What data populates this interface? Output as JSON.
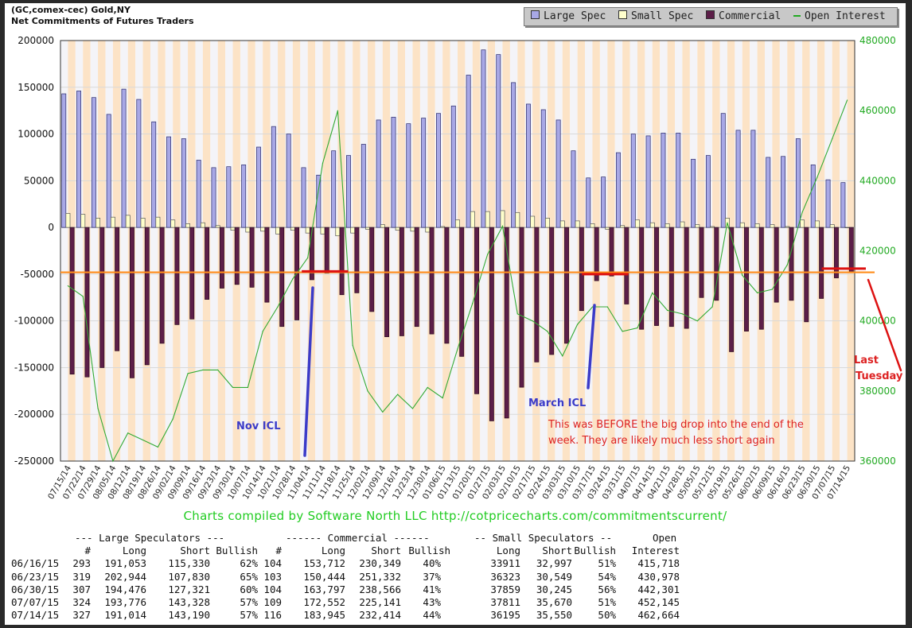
{
  "header": {
    "symbol": "(GC,comex-cec) Gold,NY",
    "subtitle": "Net Commitments of Futures Traders"
  },
  "legend": [
    {
      "label": "Large Spec",
      "color": "#a8a8e6",
      "kind": "bar"
    },
    {
      "label": "Small Spec",
      "color": "#ffffcc",
      "kind": "bar"
    },
    {
      "label": "Commercial",
      "color": "#5c1e48",
      "kind": "bar"
    },
    {
      "label": "Open Interest",
      "color": "#22aa22",
      "kind": "line"
    }
  ],
  "chart_data": {
    "type": "bar",
    "left_axis": {
      "min": -250000,
      "max": 200000,
      "ticks": [
        "200000",
        "150000",
        "100000",
        "50000",
        "0",
        "-50000",
        "-100000",
        "-150000",
        "-200000",
        "-250000"
      ]
    },
    "right_axis": {
      "min": 360000,
      "max": 480000,
      "ticks": [
        "480000",
        "460000",
        "440000",
        "420000",
        "400000",
        "380000",
        "360000"
      ]
    },
    "categories": [
      "07/15/14",
      "07/22/14",
      "07/29/14",
      "08/05/14",
      "08/12/14",
      "08/19/14",
      "08/26/14",
      "09/02/14",
      "09/09/14",
      "09/16/14",
      "09/23/14",
      "09/30/14",
      "10/07/14",
      "10/14/14",
      "10/21/14",
      "10/28/14",
      "11/04/14",
      "11/11/14",
      "11/18/14",
      "11/25/14",
      "12/02/14",
      "12/09/14",
      "12/16/14",
      "12/23/14",
      "12/30/14",
      "01/06/15",
      "01/13/15",
      "01/20/15",
      "01/27/15",
      "02/03/15",
      "02/10/15",
      "02/17/15",
      "02/24/15",
      "03/03/15",
      "03/10/15",
      "03/17/15",
      "03/24/15",
      "03/31/15",
      "04/07/15",
      "04/14/15",
      "04/21/15",
      "04/28/15",
      "05/05/15",
      "05/12/15",
      "05/19/15",
      "05/26/15",
      "06/02/15",
      "06/09/15",
      "06/16/15",
      "06/23/15",
      "06/30/15",
      "07/07/15",
      "07/14/15"
    ],
    "x_tick_labels": [
      "07/15/14",
      "07/22/14",
      "07/29/14",
      "08/05/14",
      "08/12/14",
      "08/19/14",
      "08/26/14",
      "09/02/14",
      "09/09/14",
      "09/16/14",
      "09/23/14",
      "09/30/14",
      "10/07/14",
      "10/14/14",
      "10/21/14",
      "10/28/14",
      "11/04/14",
      "11/11/14",
      "11/18/14",
      "11/25/14",
      "12/02/14",
      "12/09/14",
      "12/16/14",
      "12/23/14",
      "12/30/14",
      "01/06/15",
      "01/13/15",
      "01/20/15",
      "01/27/15",
      "02/03/15",
      "02/10/15",
      "02/17/15",
      "02/24/15",
      "03/03/15",
      "03/10/15",
      "03/17/15",
      "03/24/15",
      "03/31/15",
      "04/07/15",
      "04/14/15",
      "04/21/15",
      "04/28/15",
      "05/05/15",
      "05/12/15",
      "05/19/15",
      "05/26/15",
      "06/02/15",
      "06/09/15",
      "06/16/15",
      "06/23/15",
      "06/30/15",
      "07/07/15",
      "07/14/15"
    ],
    "series": [
      {
        "name": "Large Spec",
        "axis": "left",
        "values": [
          143000,
          146000,
          139000,
          121000,
          148000,
          137000,
          113000,
          97000,
          95000,
          72000,
          64000,
          65000,
          67000,
          86000,
          108000,
          100000,
          64000,
          56000,
          82000,
          77000,
          89000,
          115000,
          118000,
          111000,
          117000,
          122000,
          130000,
          163000,
          190000,
          185000,
          155000,
          132000,
          126000,
          115000,
          82000,
          53000,
          54000,
          80000,
          100000,
          98000,
          101000,
          101000,
          73000,
          77000,
          122000,
          104000,
          104000,
          75000,
          76000,
          95000,
          67000,
          51000,
          48000
        ]
      },
      {
        "name": "Small Spec",
        "axis": "left",
        "values": [
          15000,
          14000,
          10000,
          11000,
          13000,
          10000,
          11000,
          8000,
          4000,
          5000,
          2000,
          -3000,
          -5000,
          -4000,
          -7000,
          -3000,
          -6000,
          -7000,
          -9000,
          -6000,
          -2000,
          3000,
          -3000,
          -4000,
          -5000,
          1000,
          8000,
          17000,
          17000,
          18000,
          16000,
          12000,
          10000,
          7000,
          7000,
          4000,
          -2000,
          2000,
          8000,
          5000,
          4000,
          6000,
          3000,
          1000,
          10000,
          5000,
          4000,
          3000,
          1000,
          8000,
          7000,
          3000,
          0
        ]
      },
      {
        "name": "Commercial",
        "axis": "left",
        "values": [
          -157000,
          -160000,
          -150000,
          -132000,
          -161000,
          -147000,
          -124000,
          -104000,
          -98000,
          -77000,
          -65000,
          -61000,
          -64000,
          -80000,
          -106000,
          -99000,
          -56000,
          -49000,
          -72000,
          -70000,
          -90000,
          -117000,
          -116000,
          -106000,
          -114000,
          -124000,
          -138000,
          -178000,
          -207000,
          -204000,
          -171000,
          -144000,
          -136000,
          -124000,
          -89000,
          -57000,
          -52000,
          -82000,
          -109000,
          -105000,
          -106000,
          -108000,
          -75000,
          -78000,
          -133000,
          -111000,
          -109000,
          -80000,
          -78000,
          -101000,
          -76000,
          -54000,
          -48000
        ]
      },
      {
        "name": "Open Interest",
        "axis": "right",
        "values": [
          410000,
          407000,
          375000,
          360000,
          368000,
          366000,
          364000,
          372000,
          385000,
          386000,
          386000,
          381000,
          381000,
          397000,
          404000,
          412000,
          418000,
          445000,
          460000,
          393000,
          380000,
          374000,
          379000,
          375000,
          381000,
          378000,
          392000,
          405000,
          419000,
          427000,
          402000,
          400000,
          397000,
          390000,
          399000,
          404000,
          404000,
          397000,
          398000,
          408000,
          403000,
          402000,
          400000,
          404000,
          428000,
          413000,
          408000,
          409000,
          416000,
          431000,
          441000,
          452000,
          463000
        ]
      }
    ],
    "annotations": [
      {
        "text": "Nov ICL",
        "color": "#3b3bc8"
      },
      {
        "text": "March ICL",
        "color": "#3b3bc8"
      },
      {
        "text": "This was BEFORE the big drop into the end of the week.  They are likely much less short again",
        "color": "#dd2222"
      },
      {
        "text": "Last Tuesday",
        "color": "#dd2222"
      }
    ],
    "reference_line": {
      "value": -48000,
      "color": "#ff8c1a"
    }
  },
  "footer": {
    "credit": "Charts compiled by Software North LLC  http://cotpricecharts.com/commitmentscurrent/"
  },
  "table": {
    "group_headers": [
      "--- Large Speculators ---",
      "------ Commercial ------",
      "-- Small Speculators --",
      "Open"
    ],
    "col_headers": [
      "#",
      "Long",
      "Short",
      "Bullish",
      "#",
      "Long",
      "Short",
      "Bullish",
      "Long",
      "Short",
      "Bullish",
      "Interest"
    ],
    "rows": [
      [
        "06/16/15",
        "293",
        "191,053",
        "115,330",
        "62%",
        "104",
        "153,712",
        "230,349",
        "40%",
        "33911",
        "32,997",
        "51%",
        "415,718"
      ],
      [
        "06/23/15",
        "319",
        "202,944",
        "107,830",
        "65%",
        "103",
        "150,444",
        "251,332",
        "37%",
        "36323",
        "30,549",
        "54%",
        "430,978"
      ],
      [
        "06/30/15",
        "307",
        "194,476",
        "127,321",
        "60%",
        "104",
        "163,797",
        "238,566",
        "41%",
        "37859",
        "30,245",
        "56%",
        "442,301"
      ],
      [
        "07/07/15",
        "324",
        "193,776",
        "143,328",
        "57%",
        "109",
        "172,552",
        "225,141",
        "43%",
        "37811",
        "35,670",
        "51%",
        "452,145"
      ],
      [
        "07/14/15",
        "327",
        "191,014",
        "143,190",
        "57%",
        "116",
        "183,945",
        "232,414",
        "44%",
        "36195",
        "35,550",
        "50%",
        "462,664"
      ]
    ]
  }
}
